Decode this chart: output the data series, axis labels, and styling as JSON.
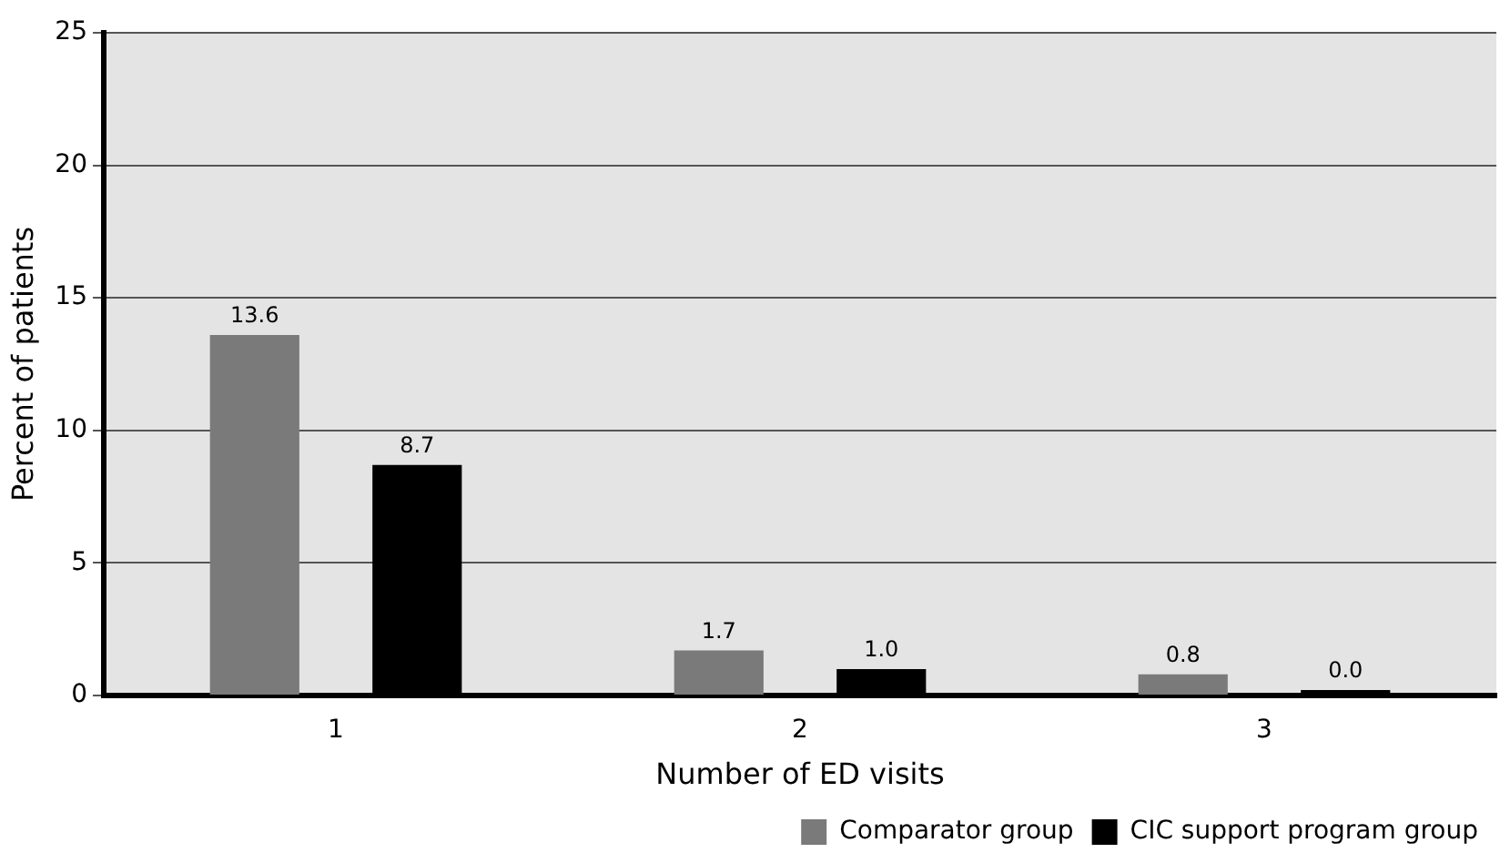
{
  "chart_data": {
    "type": "bar",
    "xlabel": "Number of ED visits",
    "ylabel": "Percent of patients",
    "categories": [
      "1",
      "2",
      "3"
    ],
    "series": [
      {
        "name": "Comparator group",
        "color": "#7a7a7a",
        "values": [
          13.6,
          1.7,
          0.8
        ],
        "value_labels": [
          "13.6",
          "1.7",
          "0.8"
        ]
      },
      {
        "name": "CIC support program group",
        "color": "#000000",
        "values": [
          8.7,
          1.0,
          0.0
        ],
        "value_labels": [
          "8.7",
          "1.0",
          "0.0"
        ]
      }
    ],
    "ylim": [
      0,
      25
    ],
    "yticks": [
      0,
      5,
      10,
      15,
      20,
      25
    ],
    "grid": "y",
    "legend": "bottom right"
  }
}
